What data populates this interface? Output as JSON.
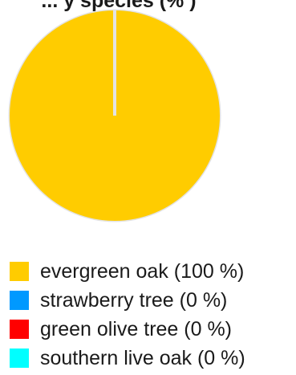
{
  "chart_data": {
    "type": "pie",
    "title": "... y species (% )",
    "categories": [
      "evergreen oak",
      "strawberry tree",
      "green olive tree",
      "southern live oak"
    ],
    "values": [
      100,
      0,
      0,
      0
    ],
    "colors": [
      "#ffcc00",
      "#0099ff",
      "#ff0000",
      "#00ffff"
    ],
    "legend_labels": [
      "evergreen oak (100 %)",
      "strawberry tree (0 %)",
      "green olive tree (0 %)",
      "southern live oak (0 %)"
    ],
    "legend_position": "bottom"
  }
}
